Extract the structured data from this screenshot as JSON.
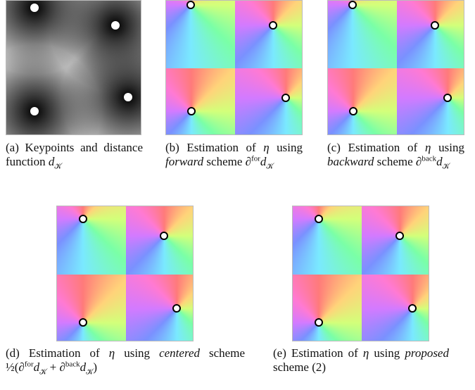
{
  "subfigures": [
    {
      "caption": [
        {
          "text": "(a) Keypoints and distance function "
        },
        {
          "text": "d",
          "italic": true
        },
        {
          "text": "𝒦",
          "sub": true
        }
      ]
    },
    {
      "caption": [
        {
          "text": "(b) Estimation of "
        },
        {
          "text": "η",
          "italic": true
        },
        {
          "text": " using "
        },
        {
          "text": "forward",
          "italic": true
        },
        {
          "text": " scheme ∂"
        },
        {
          "text": "for",
          "sup": true
        },
        {
          "text": "d",
          "italic": true
        },
        {
          "text": "𝒦",
          "sub": true
        }
      ]
    },
    {
      "caption": [
        {
          "text": "(c) Estimation of "
        },
        {
          "text": "η",
          "italic": true
        },
        {
          "text": " using "
        },
        {
          "text": "backward",
          "italic": true
        },
        {
          "text": " scheme ∂"
        },
        {
          "text": "back",
          "sup": true
        },
        {
          "text": "d",
          "italic": true
        },
        {
          "text": "𝒦",
          "sub": true
        }
      ]
    },
    {
      "caption": [
        {
          "text": "(d) Estimation of "
        },
        {
          "text": "η",
          "italic": true
        },
        {
          "text": " using "
        },
        {
          "text": "centered",
          "italic": true
        },
        {
          "text": " scheme ½(∂"
        },
        {
          "text": "for",
          "sup": true
        },
        {
          "text": "d",
          "italic": true
        },
        {
          "text": "𝒦",
          "sub": true
        },
        {
          "text": " + ∂"
        },
        {
          "text": "back",
          "sup": true
        },
        {
          "text": "d",
          "italic": true
        },
        {
          "text": "𝒦",
          "sub": true
        },
        {
          "text": ")"
        }
      ]
    },
    {
      "caption": [
        {
          "text": "(e) Estimation of "
        },
        {
          "text": "η",
          "italic": true
        },
        {
          "text": " using "
        },
        {
          "text": "proposed",
          "italic": true
        },
        {
          "text": " scheme (2)"
        }
      ]
    }
  ]
}
